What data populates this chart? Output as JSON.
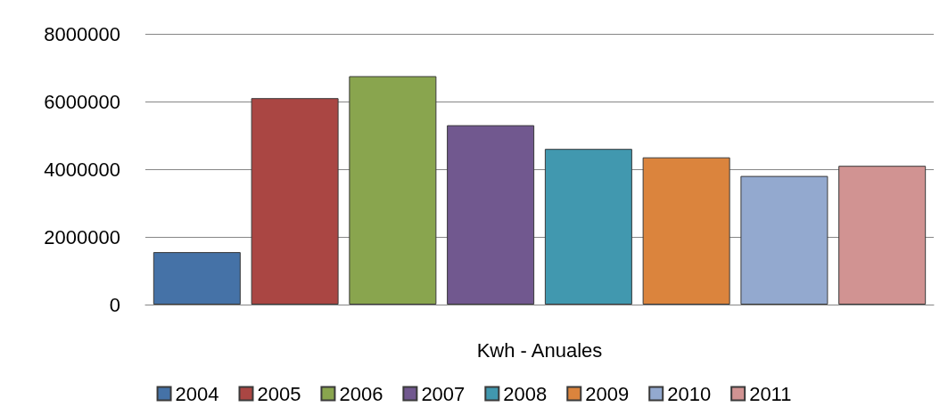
{
  "chart_data": {
    "type": "bar",
    "categories": [
      "Kwh - Anuales"
    ],
    "series": [
      {
        "name": "2004",
        "color": "#4572a7",
        "values": [
          1550000
        ]
      },
      {
        "name": "2005",
        "color": "#aa4643",
        "values": [
          6100000
        ]
      },
      {
        "name": "2006",
        "color": "#89a54e",
        "values": [
          6750000
        ]
      },
      {
        "name": "2007",
        "color": "#71588f",
        "values": [
          5300000
        ]
      },
      {
        "name": "2008",
        "color": "#4198af",
        "values": [
          4600000
        ]
      },
      {
        "name": "2009",
        "color": "#db843d",
        "values": [
          4350000
        ]
      },
      {
        "name": "2010",
        "color": "#93a9cf",
        "values": [
          3800000
        ]
      },
      {
        "name": "2011",
        "color": "#d19392",
        "values": [
          4100000
        ]
      }
    ],
    "ylim": [
      0,
      8000000
    ],
    "yticks": [
      0,
      2000000,
      4000000,
      6000000,
      8000000
    ],
    "grid": "y",
    "legend": "bottom"
  }
}
